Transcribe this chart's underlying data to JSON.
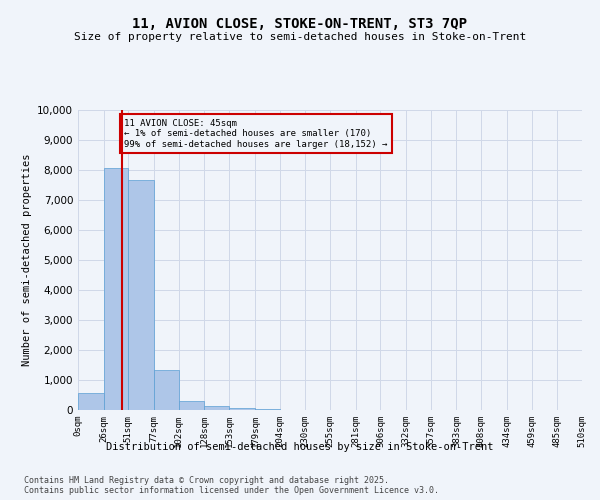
{
  "title": "11, AVION CLOSE, STOKE-ON-TRENT, ST3 7QP",
  "subtitle": "Size of property relative to semi-detached houses in Stoke-on-Trent",
  "xlabel": "Distribution of semi-detached houses by size in Stoke-on-Trent",
  "ylabel": "Number of semi-detached properties",
  "footer": "Contains HM Land Registry data © Crown copyright and database right 2025.\nContains public sector information licensed under the Open Government Licence v3.0.",
  "annotation_title": "11 AVION CLOSE: 45sqm",
  "annotation_line2": "← 1% of semi-detached houses are smaller (170)",
  "annotation_line3": "99% of semi-detached houses are larger (18,152) →",
  "property_size": 45,
  "bin_edges": [
    0,
    26,
    51,
    77,
    102,
    128,
    153,
    179,
    204,
    230,
    255,
    281,
    306,
    332,
    357,
    383,
    408,
    434,
    459,
    485,
    510
  ],
  "bin_labels": [
    "0sqm",
    "26sqm",
    "51sqm",
    "77sqm",
    "102sqm",
    "128sqm",
    "153sqm",
    "179sqm",
    "204sqm",
    "230sqm",
    "255sqm",
    "281sqm",
    "306sqm",
    "332sqm",
    "357sqm",
    "383sqm",
    "408sqm",
    "434sqm",
    "459sqm",
    "485sqm",
    "510sqm"
  ],
  "bar_values": [
    580,
    8050,
    7650,
    1350,
    290,
    145,
    75,
    40,
    0,
    0,
    0,
    0,
    0,
    0,
    0,
    0,
    0,
    0,
    0,
    0
  ],
  "bar_color": "#aec6e8",
  "bar_edge_color": "#5a9fd4",
  "grid_color": "#d0d8e8",
  "background_color": "#f0f4fa",
  "red_line_color": "#cc0000",
  "annotation_box_color": "#cc0000",
  "ylim": [
    0,
    10000
  ],
  "yticks": [
    0,
    1000,
    2000,
    3000,
    4000,
    5000,
    6000,
    7000,
    8000,
    9000,
    10000
  ]
}
